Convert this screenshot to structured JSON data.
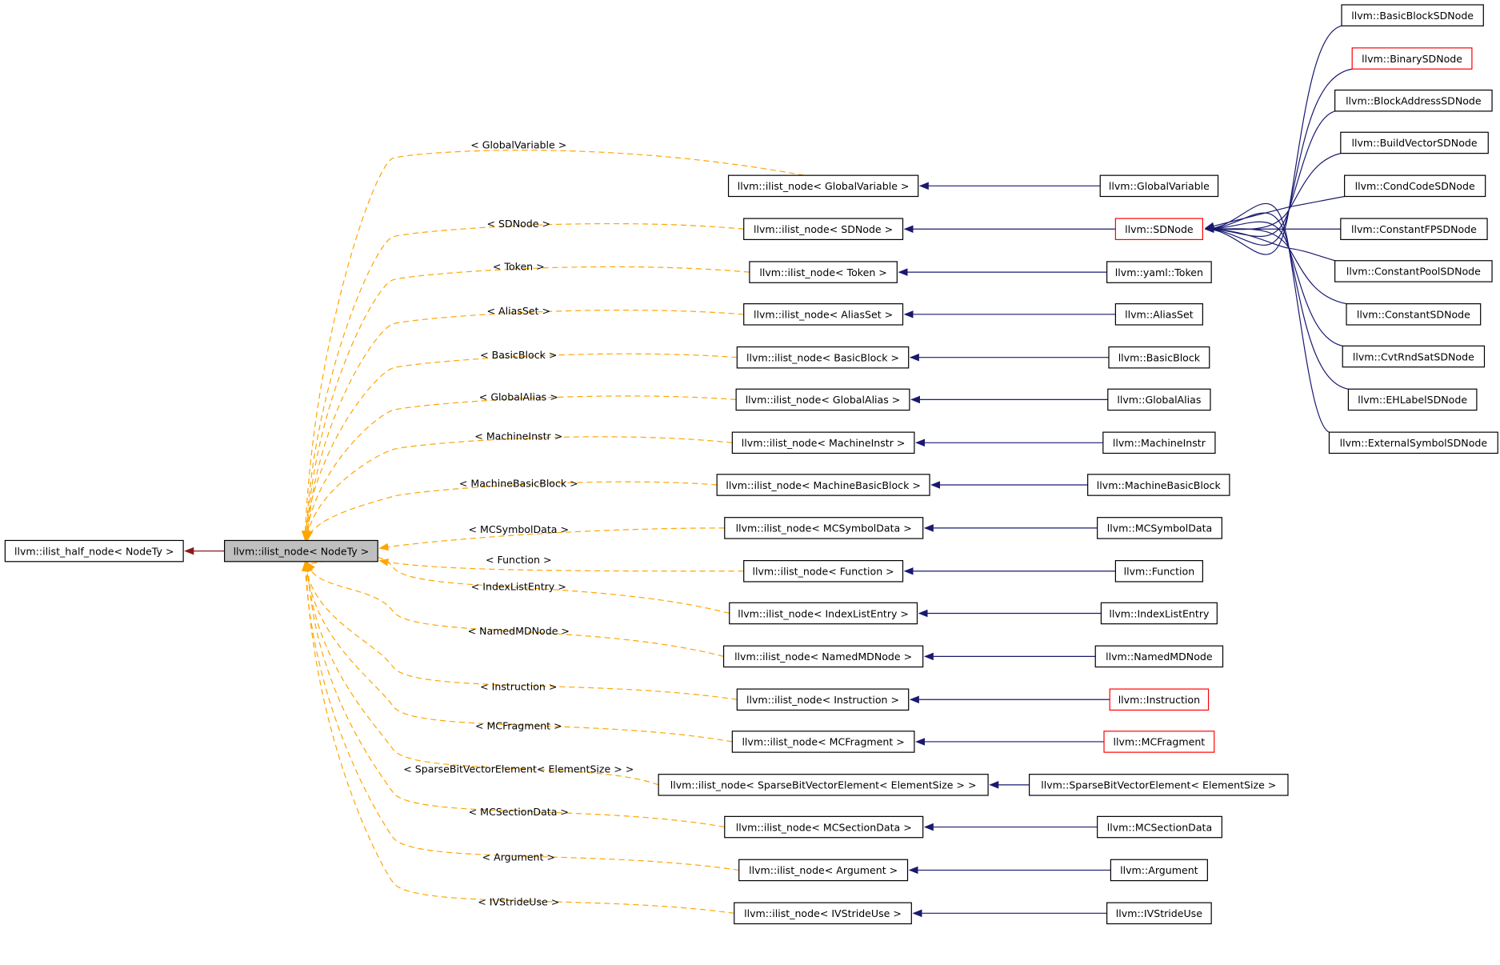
{
  "colors": {
    "node_border": "#000000",
    "highlight_border": "#ff0000",
    "root_fill": "#bfbfbf",
    "template_edge": "#ffa500",
    "inherit_edge": "#191970",
    "base_edge": "#8b1a1a"
  },
  "base_class": {
    "label": "llvm::ilist_half_node< NodeTy >"
  },
  "root_class": {
    "label": "llvm::ilist_node< NodeTy >"
  },
  "rows": [
    {
      "edge_label": "< GlobalVariable >",
      "template": "llvm::ilist_node< GlobalVariable >",
      "derived": "llvm::GlobalVariable",
      "derived_red": false
    },
    {
      "edge_label": "< SDNode >",
      "template": "llvm::ilist_node< SDNode >",
      "derived": "llvm::SDNode",
      "derived_red": true
    },
    {
      "edge_label": "< Token >",
      "template": "llvm::ilist_node< Token >",
      "derived": "llvm::yaml::Token",
      "derived_red": false
    },
    {
      "edge_label": "< AliasSet >",
      "template": "llvm::ilist_node< AliasSet >",
      "derived": "llvm::AliasSet",
      "derived_red": false
    },
    {
      "edge_label": "< BasicBlock >",
      "template": "llvm::ilist_node< BasicBlock >",
      "derived": "llvm::BasicBlock",
      "derived_red": false
    },
    {
      "edge_label": "< GlobalAlias >",
      "template": "llvm::ilist_node< GlobalAlias >",
      "derived": "llvm::GlobalAlias",
      "derived_red": false
    },
    {
      "edge_label": "< MachineInstr >",
      "template": "llvm::ilist_node< MachineInstr >",
      "derived": "llvm::MachineInstr",
      "derived_red": false
    },
    {
      "edge_label": "< MachineBasicBlock >",
      "template": "llvm::ilist_node< MachineBasicBlock >",
      "derived": "llvm::MachineBasicBlock",
      "derived_red": false
    },
    {
      "edge_label": "< MCSymbolData >",
      "template": "llvm::ilist_node< MCSymbolData >",
      "derived": "llvm::MCSymbolData",
      "derived_red": false
    },
    {
      "edge_label": "< Function >",
      "template": "llvm::ilist_node< Function >",
      "derived": "llvm::Function",
      "derived_red": false
    },
    {
      "edge_label": "< IndexListEntry >",
      "template": "llvm::ilist_node< IndexListEntry >",
      "derived": "llvm::IndexListEntry",
      "derived_red": false
    },
    {
      "edge_label": "< NamedMDNode >",
      "template": "llvm::ilist_node< NamedMDNode >",
      "derived": "llvm::NamedMDNode",
      "derived_red": false
    },
    {
      "edge_label": "< Instruction >",
      "template": "llvm::ilist_node< Instruction >",
      "derived": "llvm::Instruction",
      "derived_red": true
    },
    {
      "edge_label": "< MCFragment >",
      "template": "llvm::ilist_node< MCFragment >",
      "derived": "llvm::MCFragment",
      "derived_red": true
    },
    {
      "edge_label": "< SparseBitVectorElement< ElementSize > >",
      "template": "llvm::ilist_node< SparseBitVectorElement< ElementSize > >",
      "derived": "llvm::SparseBitVectorElement< ElementSize >",
      "derived_red": false
    },
    {
      "edge_label": "< MCSectionData >",
      "template": "llvm::ilist_node< MCSectionData >",
      "derived": "llvm::MCSectionData",
      "derived_red": false
    },
    {
      "edge_label": "< Argument >",
      "template": "llvm::ilist_node< Argument >",
      "derived": "llvm::Argument",
      "derived_red": false
    },
    {
      "edge_label": "< IVStrideUse >",
      "template": "llvm::ilist_node< IVStrideUse >",
      "derived": "llvm::IVStrideUse",
      "derived_red": false
    }
  ],
  "sdnode_children": [
    {
      "label": "llvm::BasicBlockSDNode",
      "red": false
    },
    {
      "label": "llvm::BinarySDNode",
      "red": true
    },
    {
      "label": "llvm::BlockAddressSDNode",
      "red": false
    },
    {
      "label": "llvm::BuildVectorSDNode",
      "red": false
    },
    {
      "label": "llvm::CondCodeSDNode",
      "red": false
    },
    {
      "label": "llvm::ConstantFPSDNode",
      "red": false
    },
    {
      "label": "llvm::ConstantPoolSDNode",
      "red": false
    },
    {
      "label": "llvm::ConstantSDNode",
      "red": false
    },
    {
      "label": "llvm::CvtRndSatSDNode",
      "red": false
    },
    {
      "label": "llvm::EHLabelSDNode",
      "red": false
    },
    {
      "label": "llvm::ExternalSymbolSDNode",
      "red": false
    }
  ]
}
